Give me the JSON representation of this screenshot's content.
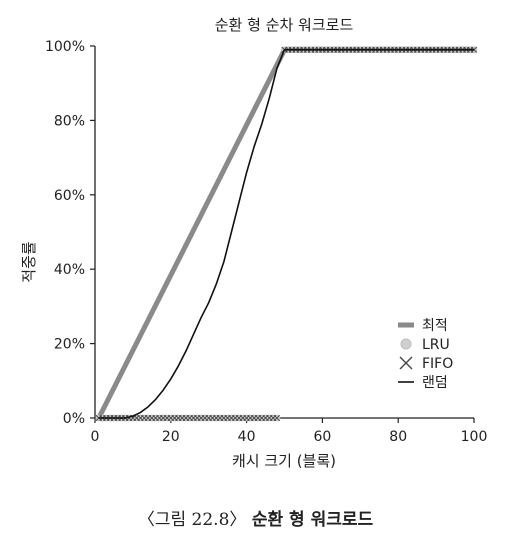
{
  "chart_data": {
    "type": "line",
    "title": "순환 형 순차 워크로드",
    "xlabel": "캐시 크기 (블록)",
    "ylabel": "적중률",
    "xlim": [
      0,
      100
    ],
    "ylim": [
      0,
      100
    ],
    "x_ticks": [
      "0",
      "20",
      "40",
      "60",
      "80",
      "100"
    ],
    "y_ticks": [
      "0%",
      "20%",
      "40%",
      "60%",
      "80%",
      "100%"
    ],
    "grid": false,
    "legend_position": "bottom-right",
    "series": [
      {
        "name": "최적",
        "style": "thick-gray-line",
        "color": "#8a8a8a",
        "x": [
          1,
          50,
          100
        ],
        "y": [
          0,
          99,
          99
        ]
      },
      {
        "name": "LRU",
        "style": "circle-markers",
        "color": "#bdbdbd",
        "x": [
          1,
          49,
          50,
          100
        ],
        "y": [
          0,
          0,
          99,
          99
        ]
      },
      {
        "name": "FIFO",
        "style": "x-markers",
        "color": "#444444",
        "x": [
          1,
          49,
          50,
          100
        ],
        "y": [
          0,
          0,
          99,
          99
        ]
      },
      {
        "name": "랜덤",
        "style": "thin-black-line",
        "color": "#111111",
        "x": [
          1,
          8,
          10,
          12,
          14,
          16,
          18,
          20,
          22,
          24,
          26,
          28,
          30,
          32,
          34,
          36,
          38,
          40,
          42,
          44,
          46,
          48,
          50,
          100
        ],
        "y": [
          0,
          0,
          0.5,
          1.5,
          3,
          5,
          7.5,
          10.5,
          14,
          18,
          22.5,
          27,
          31,
          36,
          42,
          50,
          58,
          66,
          73,
          79,
          86,
          94,
          99,
          99
        ]
      }
    ]
  },
  "caption": {
    "prefix": "〈그림 22.8〉",
    "title": "순환 형 워크로드"
  }
}
